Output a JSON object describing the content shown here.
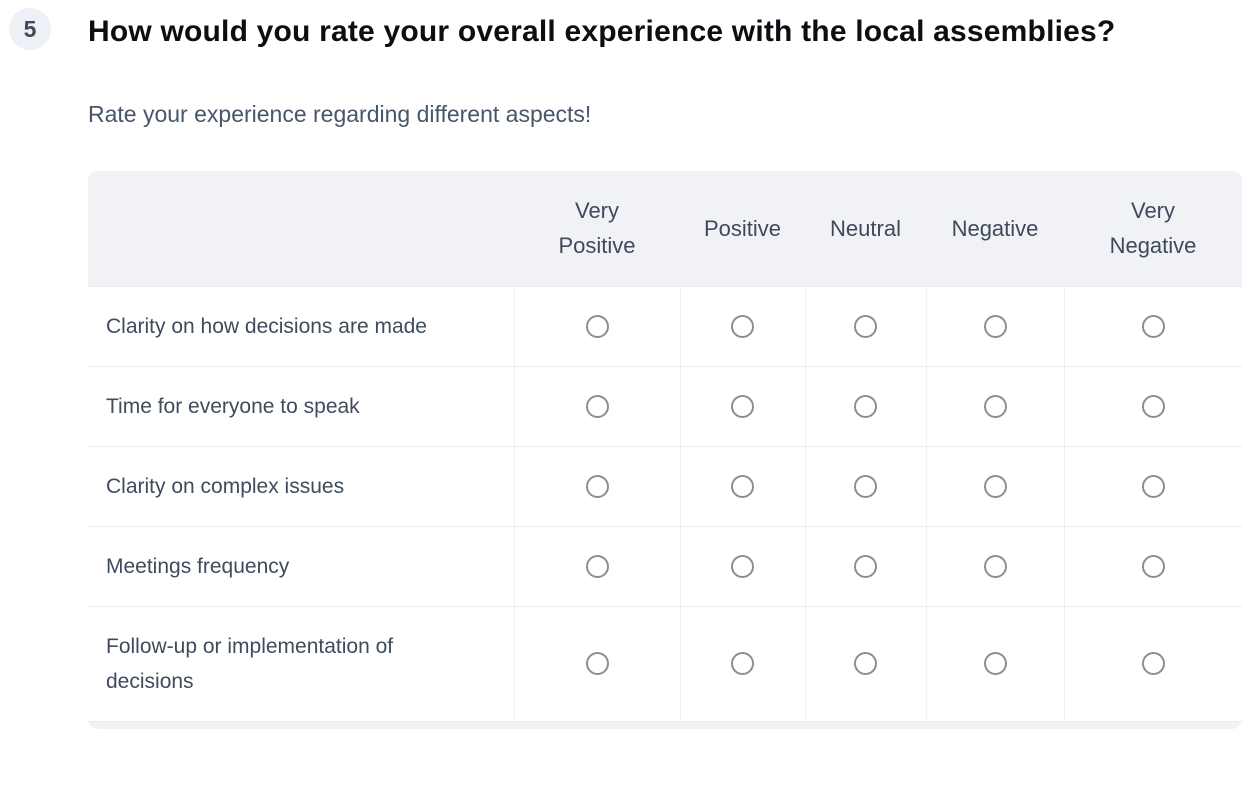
{
  "question": {
    "number": "5",
    "title": "How would you rate your overall experience with the local assemblies?",
    "description": "Rate your experience regarding different aspects!"
  },
  "matrix": {
    "columns": [
      "Very Positive",
      "Positive",
      "Neutral",
      "Negative",
      "Very Negative"
    ],
    "rows": [
      {
        "label": "Clarity on how decisions are made"
      },
      {
        "label": "Time for everyone to speak"
      },
      {
        "label": "Clarity on complex issues"
      },
      {
        "label": "Meetings frequency"
      },
      {
        "label": "Follow-up or implementation of decisions"
      }
    ]
  },
  "colors": {
    "table_header_bg": "#f1f2f6",
    "title_text": "#0b0e13",
    "secondary_text": "#47566b",
    "header_text": "#3d4a5c",
    "row_label_text": "#3e4c5e",
    "radio_ring": "#8b8e9a",
    "row_border": "#ecedf2",
    "column_border": "#eef0f3",
    "badge_bg": "#eef0f5"
  }
}
